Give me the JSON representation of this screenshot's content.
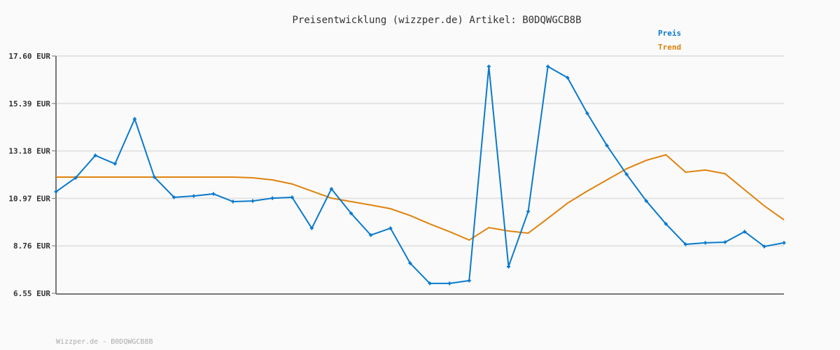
{
  "chart_data": {
    "type": "line",
    "title": "Preisentwicklung (wizzper.de) Artikel: B0DQWGCB8B",
    "xlabel": "",
    "ylabel": "",
    "ylim": [
      6.55,
      17.6
    ],
    "yticks": [
      "17.60 EUR",
      "15.39 EUR",
      "13.18 EUR",
      "10.97 EUR",
      "8.76 EUR",
      "6.55 EUR"
    ],
    "ytick_values": [
      17.6,
      15.39,
      13.18,
      10.97,
      8.76,
      6.55
    ],
    "grid": true,
    "legend_position": "top-right",
    "series": [
      {
        "name": "Preis",
        "color": "#0a7acc",
        "values": [
          11.28,
          11.93,
          12.97,
          12.58,
          14.67,
          11.96,
          11.02,
          11.08,
          11.18,
          10.82,
          10.85,
          10.98,
          11.02,
          9.58,
          11.41,
          10.27,
          9.26,
          9.58,
          7.95,
          7.01,
          7.01,
          7.14,
          17.11,
          7.79,
          10.36,
          17.11,
          16.59,
          14.93,
          13.43,
          12.09,
          10.85,
          9.78,
          8.83,
          8.9,
          8.93,
          9.42,
          8.73,
          8.9
        ]
      },
      {
        "name": "Trend",
        "color": "#e0820c",
        "values": [
          11.96,
          11.96,
          11.96,
          11.96,
          11.96,
          11.96,
          11.96,
          11.96,
          11.96,
          11.96,
          11.93,
          11.83,
          11.64,
          11.31,
          10.98,
          10.82,
          10.66,
          10.49,
          10.17,
          9.78,
          9.42,
          9.03,
          9.61,
          9.45,
          9.35,
          10.04,
          10.75,
          11.31,
          11.83,
          12.35,
          12.74,
          13.0,
          12.19,
          12.29,
          12.12,
          11.37,
          10.62,
          9.97
        ]
      }
    ]
  },
  "footer": "Wizzper.de - B0DQWGCB8B"
}
